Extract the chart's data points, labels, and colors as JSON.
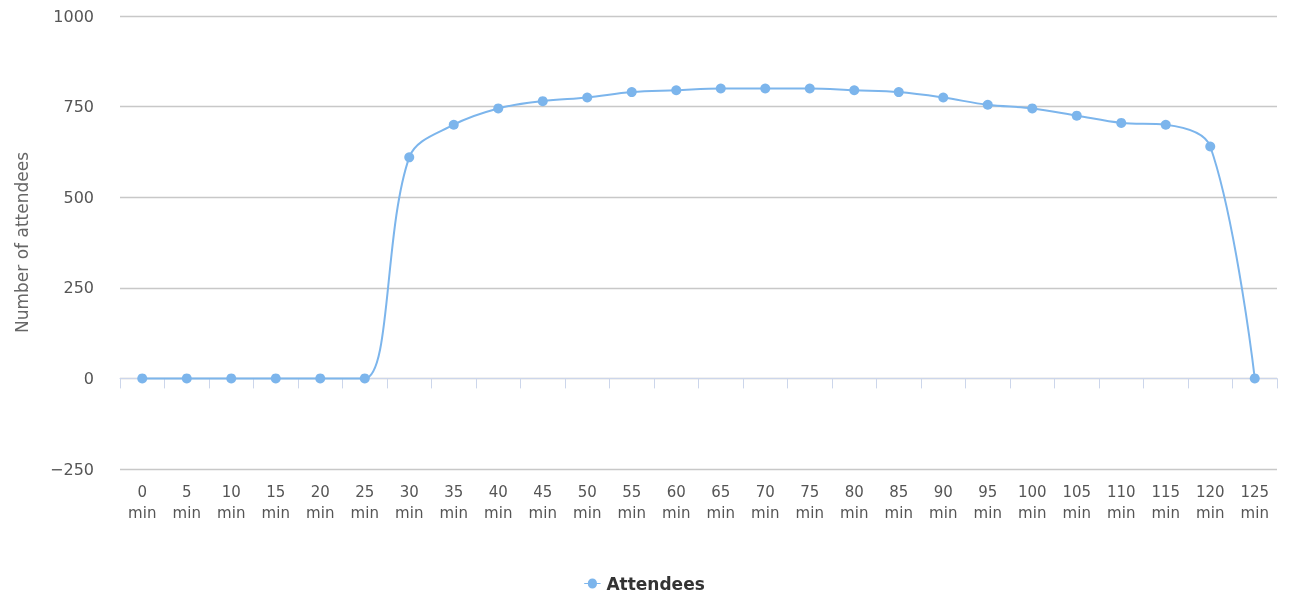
{
  "chart_data": {
    "type": "line",
    "ylabel": "Number of attendees",
    "categories": [
      "0 min",
      "5 min",
      "10 min",
      "15 min",
      "20 min",
      "25 min",
      "30 min",
      "35 min",
      "40 min",
      "45 min",
      "50 min",
      "55 min",
      "60 min",
      "65 min",
      "70 min",
      "75 min",
      "80 min",
      "85 min",
      "90 min",
      "95 min",
      "100 min",
      "105 min",
      "110 min",
      "115 min",
      "120 min",
      "125 min"
    ],
    "series": [
      {
        "name": "Attendees",
        "color": "#7cb5ec",
        "values": [
          0,
          0,
          0,
          0,
          0,
          0,
          610,
          700,
          745,
          765,
          775,
          790,
          795,
          800,
          800,
          800,
          795,
          790,
          775,
          755,
          745,
          725,
          705,
          700,
          640,
          0
        ]
      }
    ],
    "ylim": [
      -250,
      1000
    ],
    "yticks": [
      {
        "value": -250,
        "label": "−250"
      },
      0,
      250,
      500,
      750,
      1000
    ],
    "grid": "y",
    "legend": "bottom",
    "marker": "circle",
    "line_style": "solid"
  }
}
